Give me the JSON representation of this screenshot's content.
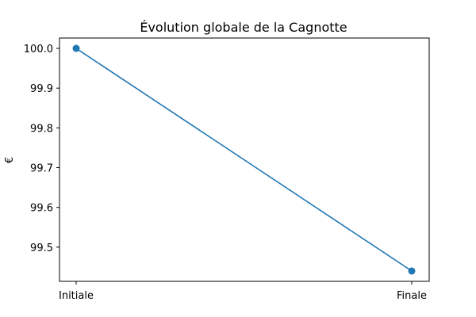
{
  "chart_data": {
    "type": "line",
    "title": "Évolution globale de la Cagnotte",
    "xlabel": "",
    "ylabel": "€",
    "categories": [
      "Initiale",
      "Finale"
    ],
    "series": [
      {
        "values": [
          100.0,
          99.44
        ],
        "color": "#1f77b4",
        "marker": "circle"
      }
    ],
    "ylim": [
      99.414,
      100.026
    ],
    "yticks": [
      99.5,
      99.6,
      99.7,
      99.8,
      99.9,
      100.0
    ],
    "ytick_labels": [
      "99.5",
      "99.6",
      "99.7",
      "99.8",
      "99.9",
      "100.0"
    ],
    "grid": false,
    "legend": "none"
  }
}
